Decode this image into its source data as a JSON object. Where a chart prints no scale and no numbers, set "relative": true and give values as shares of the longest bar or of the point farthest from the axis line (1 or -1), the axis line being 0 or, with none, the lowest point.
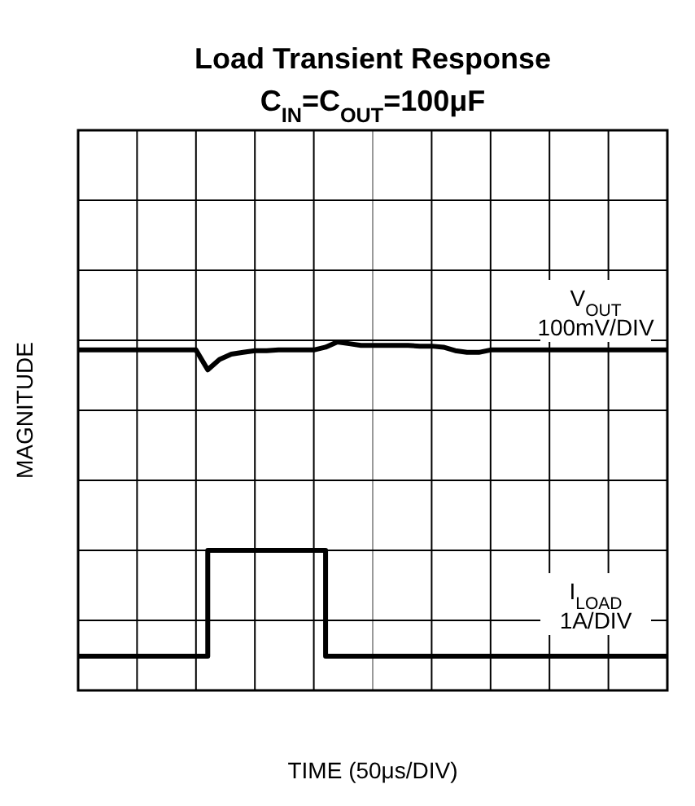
{
  "chart_data": {
    "type": "line",
    "relative": true,
    "title": "Load Transient Response",
    "subtitle": "C$_{IN}$=C$_{OUT}$=100μF",
    "xlabel": "TIME (50μs/DIV)",
    "ylabel": "MAGNITUDE",
    "grid": true,
    "categories": [
      null,
      null,
      null,
      null,
      null,
      null,
      null,
      null,
      null,
      null,
      null,
      null,
      null,
      null,
      null,
      null,
      null,
      null,
      null,
      null,
      null,
      null,
      null,
      null,
      null,
      null,
      null,
      null,
      null,
      null,
      null,
      null,
      null,
      null,
      null,
      null,
      null,
      null,
      null,
      null,
      null,
      null,
      null,
      null,
      null,
      null,
      null,
      null,
      null,
      null,
      null
    ],
    "series": [
      {
        "name": "V$_{OUT}$",
        "color": "#000000",
        "values": [
          0.977,
          0.977,
          0.977,
          0.977,
          0.977,
          0.977,
          0.977,
          0.977,
          0.977,
          0.977,
          0.977,
          0.92,
          0.95,
          0.965,
          0.97,
          0.975,
          0.975,
          0.977,
          0.977,
          0.977,
          0.977,
          0.985,
          1.0,
          0.995,
          0.99,
          0.99,
          0.99,
          0.99,
          0.99,
          0.988,
          0.988,
          0.985,
          0.975,
          0.97,
          0.97,
          0.977,
          0.977,
          0.977,
          0.977,
          0.977,
          0.977,
          0.977,
          0.977,
          0.977,
          0.977,
          0.977,
          0.977,
          0.977,
          0.977,
          0.977,
          0.977
        ]
      },
      {
        "name": "I$_{LOAD}$",
        "type": "step",
        "color": "#000000",
        "values": [
          0.098,
          0.098,
          0.098,
          0.098,
          0.098,
          0.098,
          0.098,
          0.098,
          0.098,
          0.098,
          0.098,
          0.402,
          0.402,
          0.402,
          0.402,
          0.402,
          0.402,
          0.402,
          0.402,
          0.402,
          0.402,
          0.098,
          0.098,
          0.098,
          0.098,
          0.098,
          0.098,
          0.098,
          0.098,
          0.098,
          0.098,
          0.098,
          0.098,
          0.098,
          0.098,
          0.098,
          0.098,
          0.098,
          0.098,
          0.098,
          0.098,
          0.098,
          0.098,
          0.098,
          0.098,
          0.098,
          0.098,
          0.098,
          0.098,
          0.098,
          0.098
        ]
      }
    ],
    "annotations": [
      "100mV/DIV",
      "1A/DIV"
    ]
  }
}
